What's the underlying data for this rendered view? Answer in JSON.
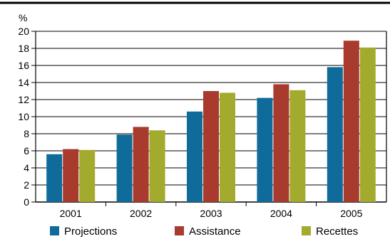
{
  "chart_data": {
    "type": "bar",
    "ylabel": "%",
    "ylim": [
      0,
      20
    ],
    "ytick_step": 2,
    "grid": true,
    "legend_position": "bottom",
    "categories": [
      "2001",
      "2002",
      "2003",
      "2004",
      "2005"
    ],
    "series": [
      {
        "name": "Projections",
        "color": "#0f6b9a",
        "values": [
          5.6,
          7.9,
          10.6,
          12.2,
          15.8
        ]
      },
      {
        "name": "Assistance",
        "color": "#a83a2e",
        "values": [
          6.2,
          8.8,
          13.0,
          13.8,
          18.9
        ]
      },
      {
        "name": "Recettes",
        "color": "#a3ab2e",
        "values": [
          6.1,
          8.4,
          12.8,
          13.1,
          18.1
        ]
      }
    ]
  }
}
